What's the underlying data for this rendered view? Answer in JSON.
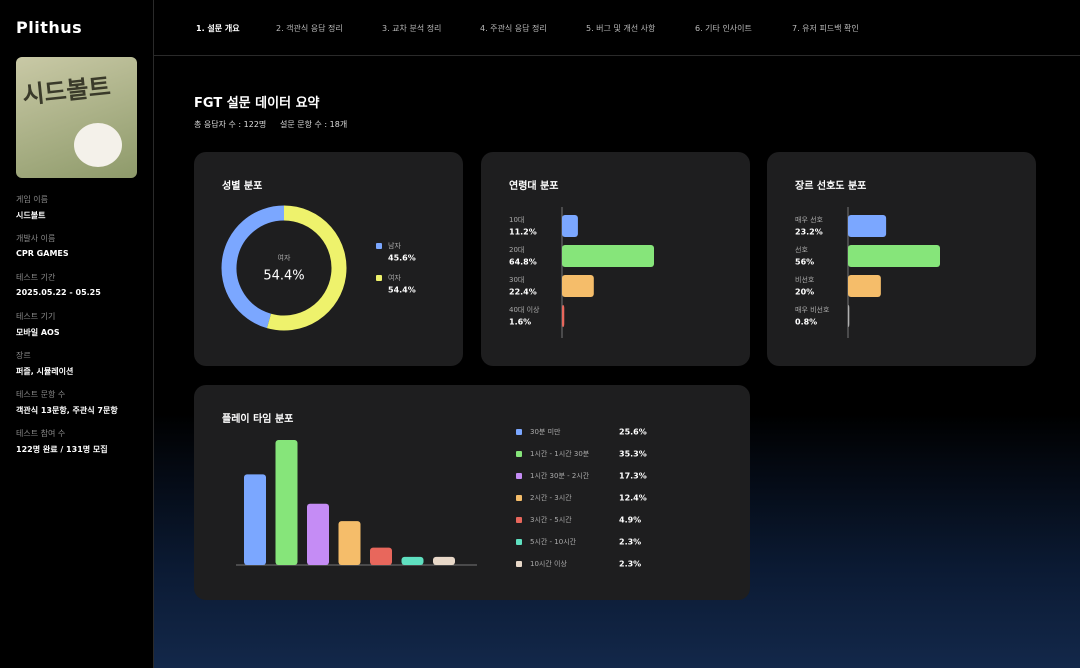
{
  "sidebar": {
    "logo": "Plithus",
    "image_text": "시드볼트",
    "fields": [
      {
        "label": "게임 이름",
        "value": "시드볼트"
      },
      {
        "label": "개발사 이름",
        "value": "CPR GAMES"
      },
      {
        "label": "테스트 기간",
        "value": "2025.05.22 - 05.25"
      },
      {
        "label": "테스트 기기",
        "value": "모바일 AOS"
      },
      {
        "label": "장르",
        "value": "퍼즐, 시뮬레이션"
      },
      {
        "label": "테스트 문항 수",
        "value": "객관식 13문항, 주관식 7문항"
      },
      {
        "label": "테스트 참여 수",
        "value": "122명 완료 / 131명 모집"
      }
    ]
  },
  "nav": [
    "1. 설문 개요",
    "2. 객관식 응답 정리",
    "3. 교차 분석 정리",
    "4. 주관식 응답 정리",
    "5. 버그 및 개선 사항",
    "6. 기타 인사이트",
    "7. 유저 피드백 확인"
  ],
  "header": {
    "title": "FGT 설문 데이터 요약",
    "respondents": "총 응답자 수 : 122명",
    "questions": "설문 문항 수 : 18개"
  },
  "chart_data": [
    {
      "type": "donut",
      "title": "성별 분포",
      "categories": [
        "남자",
        "여자"
      ],
      "values": [
        45.6,
        54.4
      ],
      "value_labels": [
        "45.6%",
        "54.4%"
      ],
      "colors": [
        "#7ba7ff",
        "#eef26c"
      ]
    },
    {
      "type": "hbar",
      "title": "연령대 분포",
      "categories": [
        "10대",
        "20대",
        "30대",
        "40대 이상"
      ],
      "values": [
        11.2,
        64.8,
        22.4,
        1.6
      ],
      "value_labels": [
        "11.2%",
        "64.8%",
        "22.4%",
        "1.6%"
      ],
      "colors": [
        "#7ba7ff",
        "#86e57a",
        "#f5bd6a",
        "#e8675c"
      ]
    },
    {
      "type": "hbar",
      "title": "장르 선호도 분포",
      "categories": [
        "매우 선호",
        "선호",
        "비선호",
        "매우 비선호"
      ],
      "values": [
        23.2,
        56,
        20,
        0.8
      ],
      "value_labels": [
        "23.2%",
        "56%",
        "20%",
        "0.8%"
      ],
      "colors": [
        "#7ba7ff",
        "#86e57a",
        "#f5bd6a",
        "#b0b0b0"
      ]
    },
    {
      "type": "bar",
      "title": "플레이 타임 분포",
      "categories": [
        "30분 미만",
        "1시간 - 1시간 30분",
        "1시간 30분 - 2시간",
        "2시간 - 3시간",
        "3시간 - 5시간",
        "5시간 - 10시간",
        "10시간 이상"
      ],
      "values": [
        25.6,
        35.3,
        17.3,
        12.4,
        4.9,
        2.3,
        2.3
      ],
      "value_labels": [
        "25.6%",
        "35.3%",
        "17.3%",
        "12.4%",
        "4.9%",
        "2.3%",
        "2.3%"
      ],
      "colors": [
        "#7ba7ff",
        "#86e57a",
        "#c58cf5",
        "#f5bd6a",
        "#e8675c",
        "#5fe0c0",
        "#e8d8c8"
      ]
    }
  ]
}
